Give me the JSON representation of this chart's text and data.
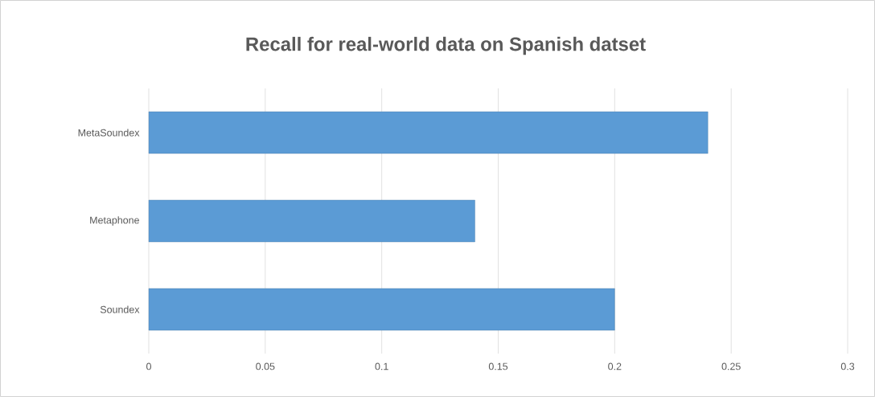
{
  "chart_data": {
    "type": "bar",
    "orientation": "horizontal",
    "title": "Recall for real-world data on Spanish datset",
    "categories": [
      "MetaSoundex",
      "Metaphone",
      "Soundex"
    ],
    "values": [
      0.24,
      0.14,
      0.2
    ],
    "color": "#5b9bd5",
    "xlim": [
      0,
      0.3
    ],
    "xticks": [
      0,
      0.05,
      0.1,
      0.15,
      0.2,
      0.25,
      0.3
    ],
    "grid": "x"
  }
}
